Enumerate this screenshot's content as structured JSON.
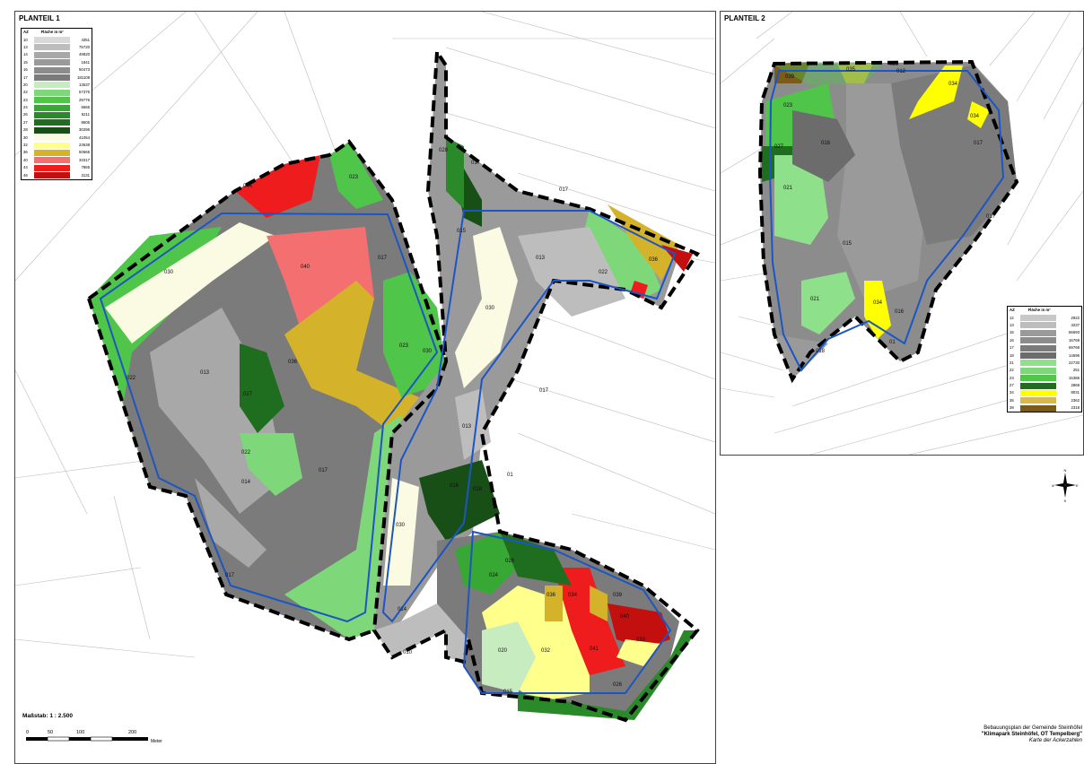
{
  "panels": {
    "p1_title": "PLANTEIL 1",
    "p2_title": "PLANTEIL 2"
  },
  "legend_header": {
    "az": "AZ",
    "area": "Fläche in m²"
  },
  "legend1": [
    {
      "az": "10",
      "area": "4351",
      "color": "#d9d9d9"
    },
    {
      "az": "13",
      "area": "75720",
      "color": "#bdbdbd"
    },
    {
      "az": "14",
      "area": "49820",
      "color": "#a8a8a8"
    },
    {
      "az": "15",
      "area": "1841",
      "color": "#9a9a9a"
    },
    {
      "az": "16",
      "area": "50473",
      "color": "#8c8c8c"
    },
    {
      "az": "17",
      "area": "181108",
      "color": "#7b7b7b"
    },
    {
      "az": "20",
      "area": "13537",
      "color": "#c6ecc0"
    },
    {
      "az": "22",
      "area": "57375",
      "color": "#7ed87a"
    },
    {
      "az": "23",
      "area": "29776",
      "color": "#4fc54a"
    },
    {
      "az": "24",
      "area": "6666",
      "color": "#37a834"
    },
    {
      "az": "26",
      "area": "5211",
      "color": "#2a8a2a"
    },
    {
      "az": "27",
      "area": "8605",
      "color": "#1f6e1f"
    },
    {
      "az": "28",
      "area": "30296",
      "color": "#174f17"
    },
    {
      "az": "30",
      "area": "41054",
      "color": "#fbfbe4"
    },
    {
      "az": "32",
      "area": "23638",
      "color": "#ffff8c"
    },
    {
      "az": "36",
      "area": "50665",
      "color": "#d4b22a"
    },
    {
      "az": "40",
      "area": "33317",
      "color": "#f47070"
    },
    {
      "az": "44",
      "area": "7865",
      "color": "#ee1c1c"
    },
    {
      "az": "46",
      "area": "3131",
      "color": "#c40f0f"
    }
  ],
  "legend2": [
    {
      "az": "12",
      "area": "2922",
      "color": "#c8c8c8"
    },
    {
      "az": "13",
      "area": "3237",
      "color": "#bdbdbd"
    },
    {
      "az": "15",
      "area": "56693",
      "color": "#9a9a9a"
    },
    {
      "az": "16",
      "area": "16769",
      "color": "#8c8c8c"
    },
    {
      "az": "17",
      "area": "69768",
      "color": "#7b7b7b"
    },
    {
      "az": "18",
      "area": "14596",
      "color": "#6c6c6c"
    },
    {
      "az": "21",
      "area": "22730",
      "color": "#8fe08a"
    },
    {
      "az": "22",
      "area": "251",
      "color": "#7ed87a"
    },
    {
      "az": "23",
      "area": "15386",
      "color": "#4fc54a"
    },
    {
      "az": "27",
      "area": "2869",
      "color": "#1f6e1f"
    },
    {
      "az": "34",
      "area": "8031",
      "color": "#ffff00"
    },
    {
      "az": "35",
      "area": "2362",
      "color": "#d9b84a"
    },
    {
      "az": "39",
      "area": "2318",
      "color": "#7a5c1a"
    }
  ],
  "map1_labels": [
    "044",
    "023",
    "030",
    "040",
    "017",
    "013",
    "036",
    "023",
    "030",
    "027",
    "022",
    "014",
    "017",
    "022",
    "017",
    "020",
    "015",
    "013",
    "013",
    "030",
    "017",
    "017",
    "016",
    "028",
    "030",
    "020",
    "014",
    "010",
    "022",
    "024",
    "036",
    "034",
    "036",
    "039",
    "040",
    "032",
    "041",
    "033",
    "020",
    "015",
    "026",
    "01"
  ],
  "map2_labels": [
    "039",
    "035",
    "026",
    "012",
    "034",
    "034",
    "023",
    "016",
    "027",
    "017",
    "021",
    "015",
    "017",
    "021",
    "034",
    "016",
    "018",
    "01"
  ],
  "scale": {
    "title": "Maßstab: 1 : 2.500",
    "ticks": [
      "0",
      "50",
      "100",
      "200"
    ],
    "unit": "Meter"
  },
  "compass": {
    "n": "N",
    "s": "S",
    "e": "E",
    "w": "W"
  },
  "info": {
    "line1": "Bebauungsplan der Gemeinde Steinhöfel",
    "line2": "\"Klimapark Steinhöfel, OT Tempelberg\"",
    "line3": "Karte der Ackerzahlen"
  }
}
